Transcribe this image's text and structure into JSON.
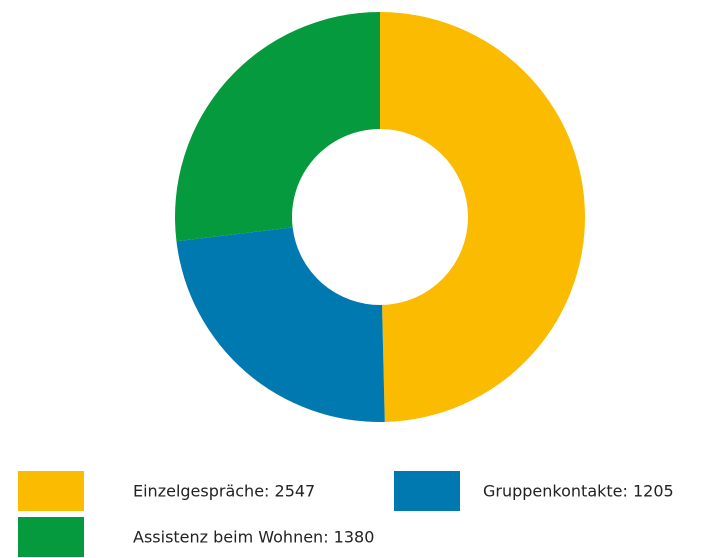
{
  "chart_data": {
    "type": "donut",
    "categories": [
      "Einzelgespräche: 2547",
      "Gruppenkontakte: 1205",
      "Assistenz beim Wohnen: 1380"
    ],
    "values": [
      2547,
      1205,
      1380
    ],
    "colors": [
      "#fbbb00",
      "#0079b0",
      "#069a3e"
    ]
  }
}
